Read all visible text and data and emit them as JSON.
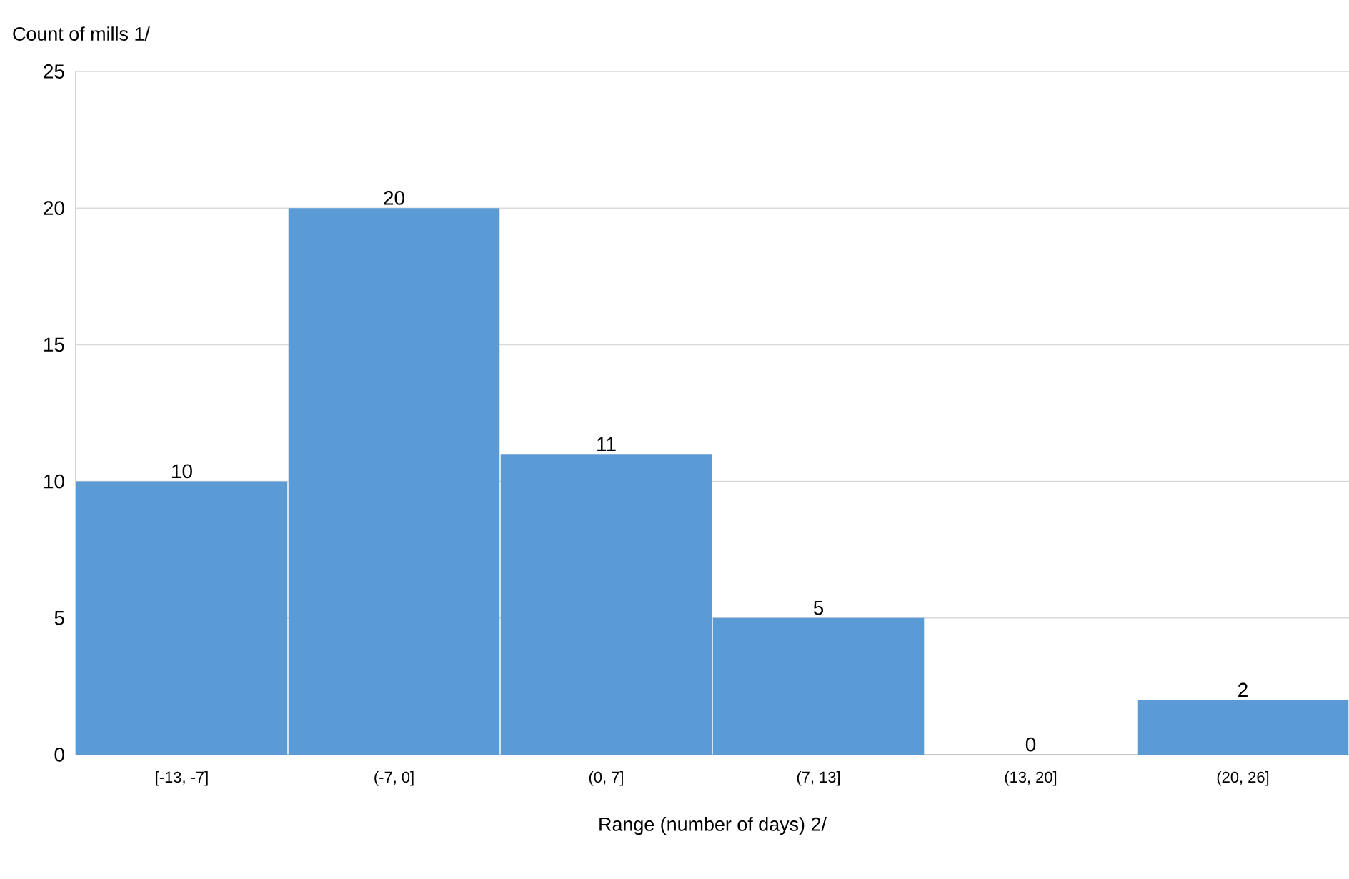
{
  "chart_data": {
    "type": "bar",
    "xlabel": "Range (number of days) 2/",
    "ylabel": "Count of mills 1/",
    "categories": [
      "[-13, -7]",
      "(-7, 0]",
      "(0, 7]",
      "(7, 13]",
      "(13, 20]",
      "(20, 26]"
    ],
    "values": [
      10,
      20,
      11,
      5,
      0,
      2
    ],
    "color": "#5b9bd5",
    "ylim": [
      0,
      25
    ],
    "yticks": [
      0,
      5,
      10,
      15,
      20,
      25
    ],
    "grid": "y",
    "data_labels": true
  }
}
